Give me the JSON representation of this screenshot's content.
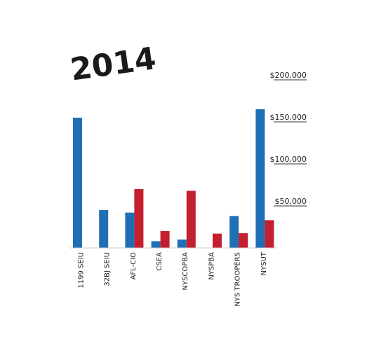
{
  "chart_data": {
    "type": "bar",
    "title": "2014",
    "categories": [
      "1199 SEIU",
      "32BJ SEIU",
      "AFL-CIO",
      "CSEA",
      "NYSCOPBA",
      "NYSPBA",
      "NYS TROOPERS",
      "NYSUT"
    ],
    "series": [
      {
        "values": [
          155000,
          45000,
          42000,
          8000,
          10000,
          0,
          38000,
          165000
        ]
      },
      {
        "values": [
          0,
          0,
          70000,
          20000,
          68000,
          17000,
          17500,
          33000
        ]
      }
    ],
    "colors": [
      "#1f6fb5",
      "#c41f2f"
    ],
    "ylim": [
      0,
      200000
    ],
    "yticks": [
      50000,
      100000,
      150000,
      200000
    ],
    "ytick_labels": [
      "$50,000",
      "$100,000",
      "$150,000",
      "$200,000"
    ],
    "xlabel": "",
    "ylabel": "",
    "grid": false,
    "y_axis_position": "right"
  }
}
